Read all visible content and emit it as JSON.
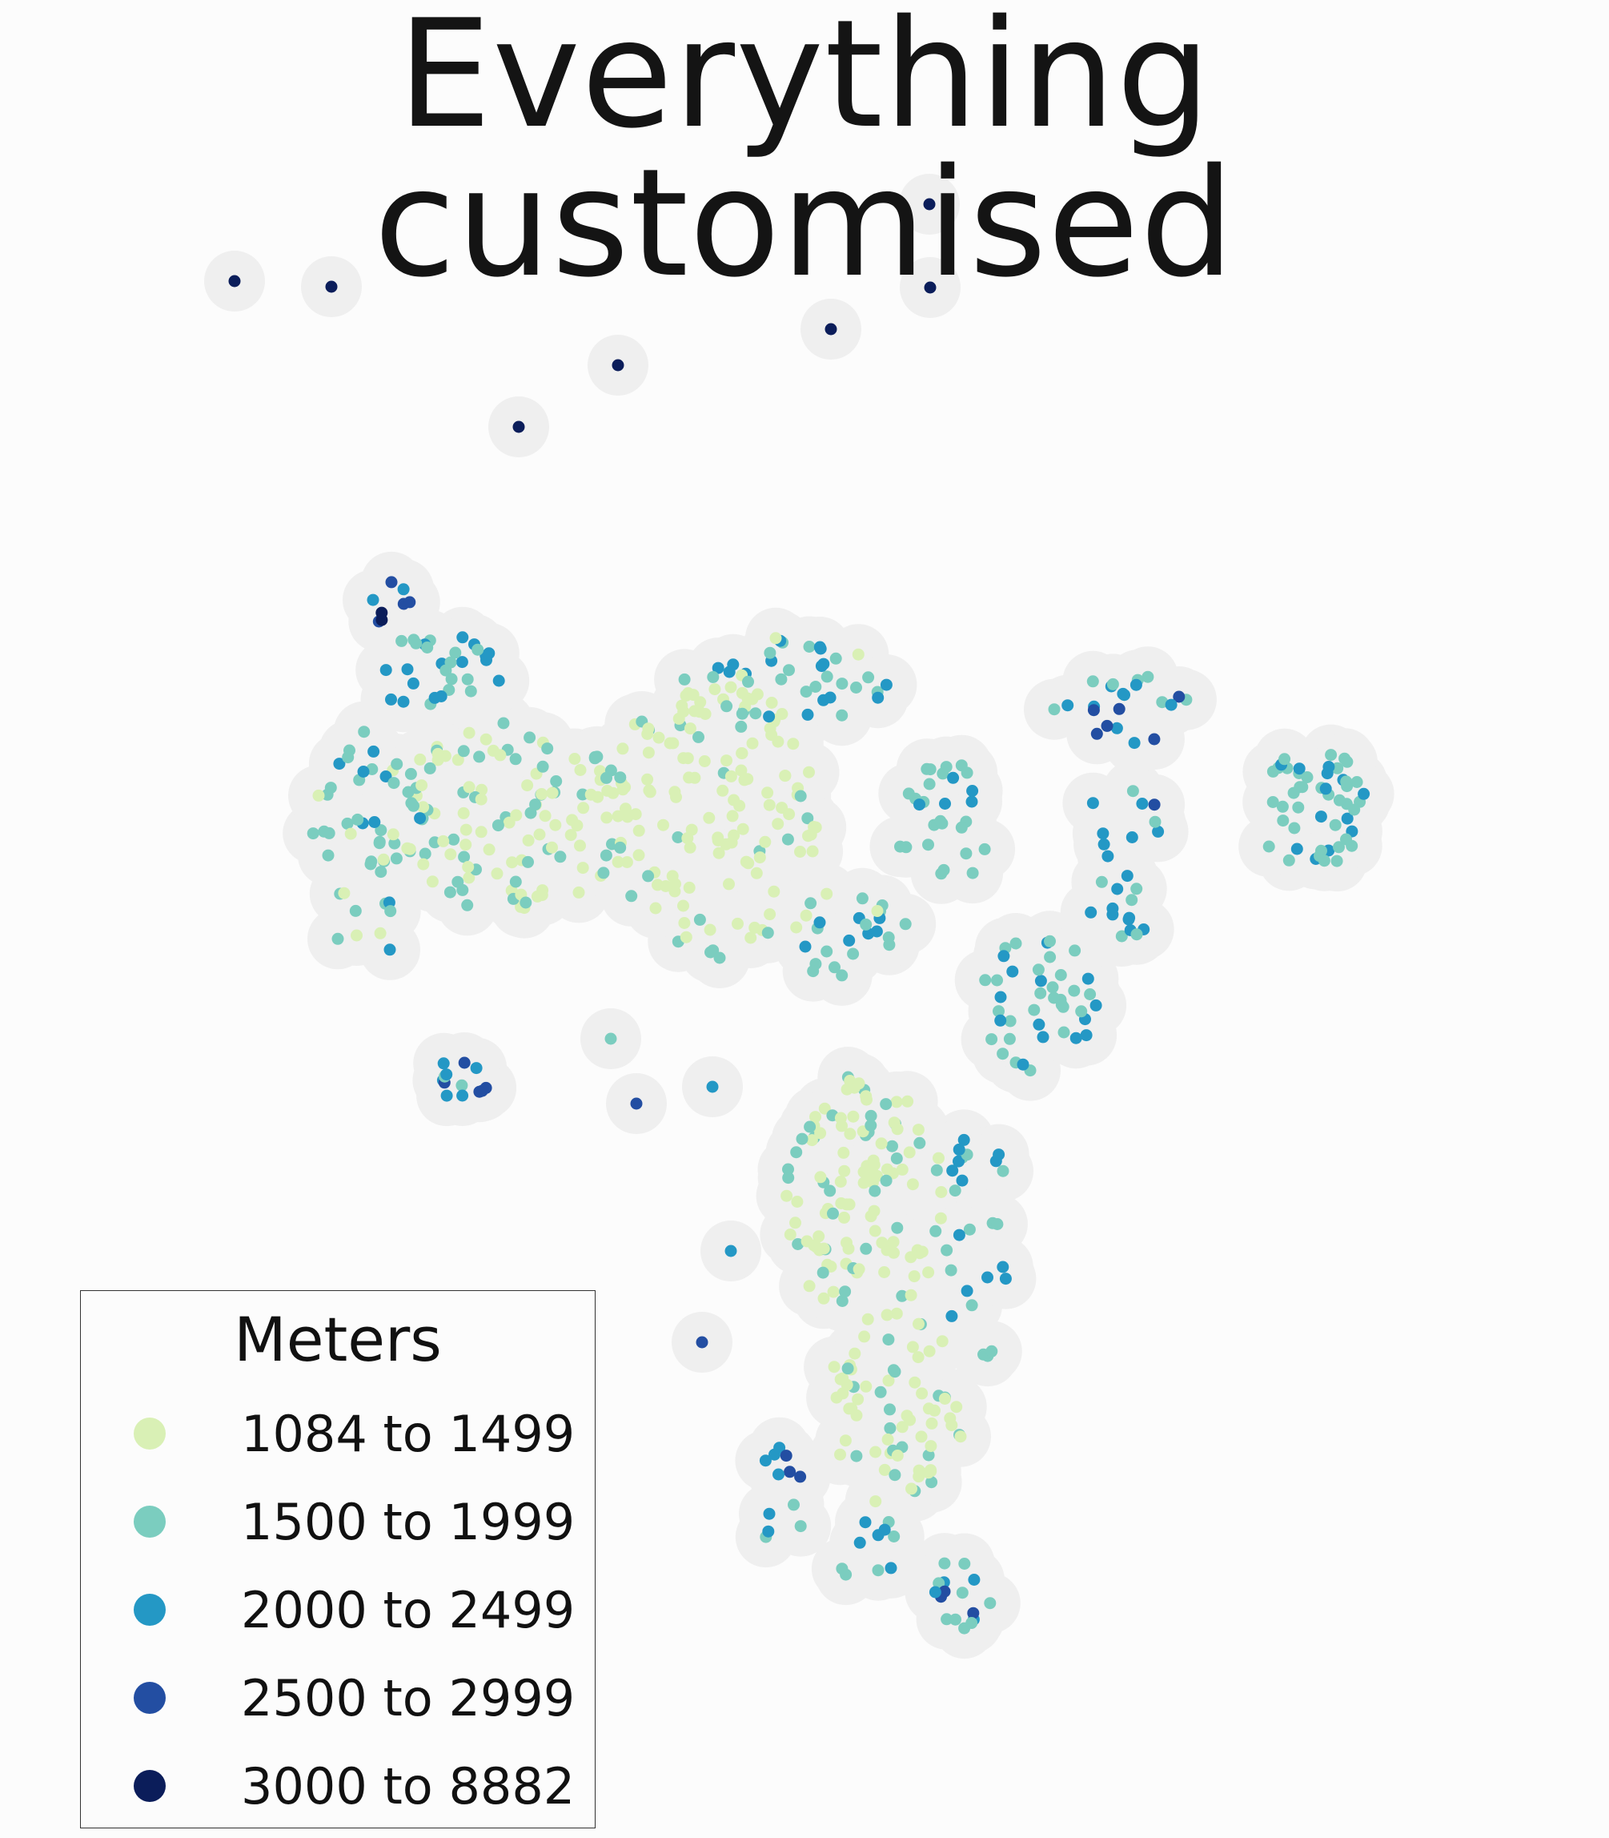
{
  "title": "Everything customised",
  "legend": {
    "title": "Meters",
    "items": [
      {
        "label": "1084 to 1499",
        "color": "#d9f0b5"
      },
      {
        "label": "1500 to 1999",
        "color": "#7bcdbf"
      },
      {
        "label": "2000 to 2499",
        "color": "#2498c5"
      },
      {
        "label": "2500 to 2999",
        "color": "#234ea2"
      },
      {
        "label": "3000 to 8882",
        "color": "#0b1d5a"
      }
    ]
  },
  "colors": {
    "background": "#fcfcfc",
    "halo": "#efefef"
  }
}
